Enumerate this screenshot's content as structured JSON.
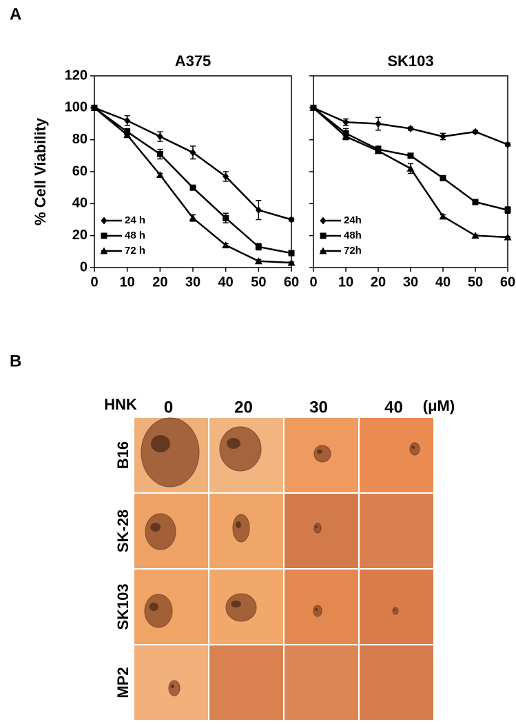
{
  "panel_labels": [
    "A",
    "B"
  ],
  "chart_data": [
    {
      "type": "line",
      "title": "A375",
      "ylabel": "% Cell Viability",
      "x": [
        0,
        10,
        20,
        30,
        40,
        50,
        60
      ],
      "xlim": [
        0,
        60
      ],
      "xticks": [
        0,
        10,
        20,
        30,
        40,
        50,
        60
      ],
      "ylim": [
        0,
        120
      ],
      "yticks": [
        0,
        20,
        40,
        60,
        80,
        100,
        120
      ],
      "show_ytick_labels": true,
      "legend": "lower left",
      "series": [
        {
          "name": "24 h",
          "color": "#000000",
          "marker": "diamond",
          "values": [
            100,
            92,
            82,
            72,
            57,
            36,
            30
          ],
          "errors": [
            0,
            3,
            3,
            4,
            3,
            6,
            1
          ]
        },
        {
          "name": "48 h",
          "color": "#000000",
          "marker": "square",
          "values": [
            100,
            85,
            71,
            50,
            31,
            13,
            9
          ],
          "errors": [
            0,
            2,
            3,
            1,
            3,
            2,
            1
          ]
        },
        {
          "name": "72 h",
          "color": "#000000",
          "marker": "triangle",
          "values": [
            100,
            83,
            58,
            31,
            14,
            4,
            3
          ],
          "errors": [
            0,
            1,
            1,
            2,
            1,
            1,
            0.5
          ]
        }
      ]
    },
    {
      "type": "line",
      "title": "SK103",
      "x": [
        0,
        10,
        20,
        30,
        40,
        50,
        60
      ],
      "xlim": [
        0,
        60
      ],
      "xticks": [
        0,
        10,
        20,
        30,
        40,
        50,
        60
      ],
      "ylim": [
        0,
        120
      ],
      "yticks": [
        0,
        20,
        40,
        60,
        80,
        100,
        120
      ],
      "show_ytick_labels": false,
      "legend": "lower left",
      "series": [
        {
          "name": "24h",
          "color": "#000000",
          "marker": "diamond",
          "values": [
            100,
            91,
            90,
            87,
            82,
            85,
            77
          ],
          "errors": [
            0,
            2,
            4,
            1,
            2,
            1,
            1
          ]
        },
        {
          "name": "48h",
          "color": "#000000",
          "marker": "square",
          "values": [
            100,
            84,
            74,
            70,
            56,
            41,
            36
          ],
          "errors": [
            0,
            3,
            2,
            1,
            1,
            1,
            2
          ]
        },
        {
          "name": "72h",
          "color": "#000000",
          "marker": "triangle",
          "values": [
            100,
            82,
            73,
            62,
            32,
            20,
            19
          ],
          "errors": [
            0,
            2,
            1,
            3,
            1,
            0.5,
            0.5
          ]
        }
      ]
    }
  ],
  "image_grid": {
    "row_header": "HNK",
    "columns": [
      "0",
      "20",
      "30",
      "40"
    ],
    "unit": "(μM)",
    "rows": [
      "B16",
      "SK-28",
      "SK103",
      "MP2"
    ]
  }
}
